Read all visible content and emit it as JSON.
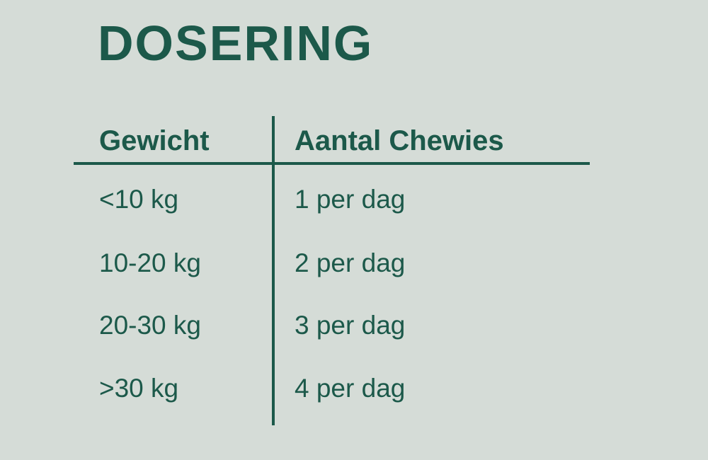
{
  "chart_data": {
    "type": "table",
    "title": "DOSERING",
    "columns": [
      "Gewicht",
      "Aantal Chewies"
    ],
    "rows": [
      [
        "<10 kg",
        "1 per dag"
      ],
      [
        "10-20 kg",
        "2 per dag"
      ],
      [
        "20-30 kg",
        "3 per dag"
      ],
      [
        ">30 kg",
        "4 per dag"
      ]
    ],
    "layout": {
      "legend": "none",
      "grid": "off",
      "header_rule": true,
      "column_divider": true
    }
  },
  "colors": {
    "background": "#d5dcd7",
    "ink": "#1c594a"
  }
}
